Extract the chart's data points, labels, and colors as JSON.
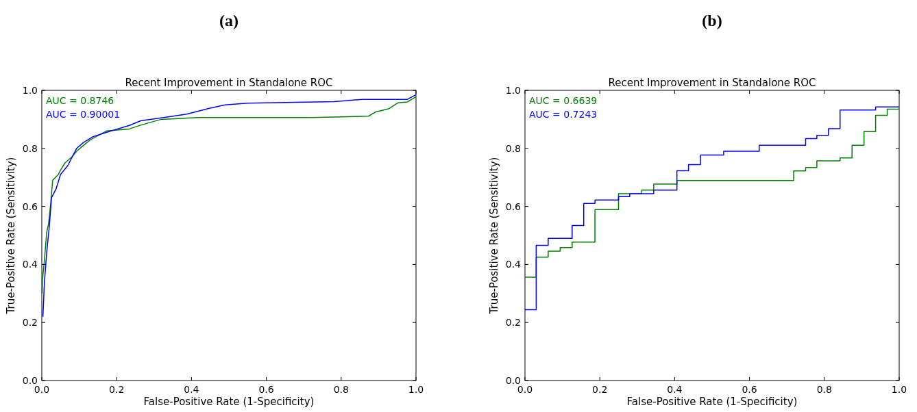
{
  "chart_data": [
    {
      "type": "line",
      "subtitle": "(a)",
      "title": "Recent Improvement in Standalone ROC",
      "xlabel": "False-Positive Rate (1-Specificity)",
      "ylabel": "True-Positive Rate (Sensitivity)",
      "xlim": [
        0,
        1
      ],
      "ylim": [
        0,
        1
      ],
      "xticks": [
        {
          "value": 0,
          "label": "0.0"
        },
        {
          "value": 0.2,
          "label": "0.2"
        },
        {
          "value": 0.4,
          "label": "0.4"
        },
        {
          "value": 0.6,
          "label": "0.6"
        },
        {
          "value": 0.8,
          "label": "0.8"
        },
        {
          "value": 1,
          "label": "1.0"
        }
      ],
      "yticks": [
        {
          "value": 0,
          "label": "0.0"
        },
        {
          "value": 0.2,
          "label": "0.2"
        },
        {
          "value": 0.4,
          "label": "0.4"
        },
        {
          "value": 0.6,
          "label": "0.6"
        },
        {
          "value": 0.8,
          "label": "0.8"
        },
        {
          "value": 1,
          "label": "1.0"
        }
      ],
      "grid": false,
      "legend": "top left",
      "series": [
        {
          "name": "AUC = 0.8746",
          "color": "#008000",
          "x": [
            0.001,
            0.002,
            0.007,
            0.013,
            0.018,
            0.023,
            0.029,
            0.044,
            0.05,
            0.062,
            0.08,
            0.093,
            0.111,
            0.13,
            0.173,
            0.234,
            0.264,
            0.319,
            0.417,
            0.72,
            0.873,
            0.891,
            0.928,
            0.952,
            0.977,
            1.0
          ],
          "values": [
            0.3,
            0.35,
            0.415,
            0.51,
            0.54,
            0.6,
            0.69,
            0.71,
            0.725,
            0.75,
            0.77,
            0.79,
            0.81,
            0.83,
            0.86,
            0.867,
            0.88,
            0.9,
            0.906,
            0.906,
            0.911,
            0.925,
            0.937,
            0.957,
            0.96,
            0.978
          ]
        },
        {
          "name": "AUC = 0.90001",
          "color": "#0000ff",
          "x": [
            0.003,
            0.007,
            0.013,
            0.02,
            0.026,
            0.038,
            0.05,
            0.069,
            0.093,
            0.111,
            0.136,
            0.172,
            0.234,
            0.264,
            0.325,
            0.387,
            0.448,
            0.49,
            0.549,
            0.781,
            0.857,
            0.977,
            1.0
          ],
          "values": [
            0.22,
            0.34,
            0.44,
            0.53,
            0.63,
            0.66,
            0.71,
            0.74,
            0.8,
            0.82,
            0.84,
            0.855,
            0.879,
            0.895,
            0.906,
            0.918,
            0.938,
            0.95,
            0.956,
            0.961,
            0.969,
            0.969,
            0.985
          ]
        }
      ]
    },
    {
      "type": "step",
      "subtitle": "(b)",
      "title": "Recent Improvement in Standalone ROC",
      "xlabel": "False-Positive Rate (1-Specificity)",
      "ylabel": "True-Positive Rate (Sensitivity)",
      "xlim": [
        0,
        1
      ],
      "ylim": [
        0,
        1
      ],
      "xticks": [
        {
          "value": 0,
          "label": "0.0"
        },
        {
          "value": 0.2,
          "label": "0.2"
        },
        {
          "value": 0.4,
          "label": "0.4"
        },
        {
          "value": 0.6,
          "label": "0.6"
        },
        {
          "value": 0.8,
          "label": "0.8"
        },
        {
          "value": 1,
          "label": "1.0"
        }
      ],
      "yticks": [
        {
          "value": 0,
          "label": "0.0"
        },
        {
          "value": 0.2,
          "label": "0.2"
        },
        {
          "value": 0.4,
          "label": "0.4"
        },
        {
          "value": 0.6,
          "label": "0.6"
        },
        {
          "value": 0.8,
          "label": "0.8"
        },
        {
          "value": 1,
          "label": "1.0"
        }
      ],
      "grid": false,
      "legend": "top left",
      "series": [
        {
          "name": "AUC = 0.6639",
          "color": "#008000",
          "x": [
            0,
            0.03,
            0.062,
            0.094,
            0.126,
            0.187,
            0.25,
            0.312,
            0.344,
            0.406,
            0.718,
            0.75,
            0.78,
            0.842,
            0.874,
            0.906,
            0.937,
            0.968,
            1.0
          ],
          "values": [
            0.356,
            0.425,
            0.446,
            0.458,
            0.477,
            0.589,
            0.644,
            0.656,
            0.677,
            0.689,
            0.722,
            0.734,
            0.757,
            0.767,
            0.811,
            0.858,
            0.914,
            0.935,
            0.935
          ]
        },
        {
          "name": "AUC = 0.7243",
          "color": "#0000ff",
          "x": [
            0,
            0.03,
            0.062,
            0.126,
            0.157,
            0.187,
            0.25,
            0.28,
            0.344,
            0.406,
            0.437,
            0.469,
            0.531,
            0.626,
            0.75,
            0.78,
            0.811,
            0.842,
            0.937,
            1.0
          ],
          "values": [
            0.244,
            0.466,
            0.49,
            0.534,
            0.61,
            0.622,
            0.634,
            0.644,
            0.656,
            0.723,
            0.744,
            0.777,
            0.79,
            0.811,
            0.834,
            0.845,
            0.868,
            0.932,
            0.943,
            0.943
          ]
        }
      ]
    }
  ]
}
